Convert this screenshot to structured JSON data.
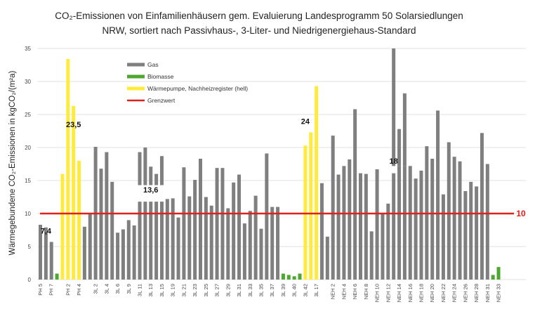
{
  "chart_data": {
    "type": "bar",
    "title_line1": "CO₂-Emissionen von Einfamilienhäusern gem. Evaluierung Landesprogramm 50 Solarsiedlungen",
    "title_line2": "NRW, sortiert nach Passivhaus-, 3-Liter- und Niedrigenergiehaus-Standard",
    "ylabel": "Wärmegebundene CO₂-Emissionen in kgCO₂/(m²a)",
    "ylim": [
      0,
      35
    ],
    "yticks": [
      "0",
      "5",
      "10",
      "15",
      "20",
      "25",
      "30",
      "35"
    ],
    "grid": true,
    "colors": {
      "gas": "#7f7f7f",
      "biomass": "#4ea72e",
      "heatpump": "#ffeb3b",
      "limit": "#e0201b"
    },
    "legend": [
      {
        "key": "gas",
        "label": "Gas"
      },
      {
        "key": "biomass",
        "label": "Biomasse"
      },
      {
        "key": "heatpump",
        "label": "Wärmepumpe, Nachheizregister (hell)"
      },
      {
        "key": "limit",
        "label": "Grenzwert"
      }
    ],
    "limit_value": 10,
    "limit_label": "10",
    "categories": [
      "PH 5",
      "PH 7",
      "PH 2",
      "PH 4",
      "3L 2",
      "3L 4",
      "3L 6",
      "3L 9",
      "3L 11",
      "3L 13",
      "3L 15",
      "3L 19",
      "3L 21",
      "3L 23",
      "3L 25",
      "3L 27",
      "3L 29",
      "3L 31",
      "3L 33",
      "3L 35",
      "3L 37",
      "3L 39",
      "3L 40",
      "3L 42",
      "3L 17",
      "NEH 2",
      "NEH 4",
      "NEH 6",
      "NEH 8",
      "NEH 10",
      "NEH 12",
      "NEH 14",
      "NEH 16",
      "NEH 18",
      "NEH 20",
      "NEH 22",
      "NEH 24",
      "NEH 26",
      "NEH 28",
      "NEH 31",
      "NEH 33"
    ],
    "bars": [
      [
        "gas",
        8.3
      ],
      [
        "gas",
        7.9
      ],
      [
        "gas",
        5.7
      ],
      [
        "biomass",
        0.9
      ],
      [
        "heatpump",
        16.0
      ],
      [
        "heatpump",
        33.4
      ],
      [
        "heatpump",
        26.3
      ],
      [
        "heatpump",
        18.0
      ],
      [
        "gas",
        8.0
      ],
      [
        "gas",
        10.0
      ],
      [
        "gas",
        20.1
      ],
      [
        "gas",
        16.8
      ],
      [
        "gas",
        19.3
      ],
      [
        "gas",
        14.8
      ],
      [
        "gas",
        7.1
      ],
      [
        "gas",
        7.6
      ],
      [
        "gas",
        9.0
      ],
      [
        "gas",
        8.2
      ],
      [
        "gas",
        11.8
      ],
      [
        "gas",
        11.8
      ],
      [
        "gas",
        11.8
      ],
      [
        "gas",
        11.8
      ],
      [
        "gas",
        11.8
      ],
      [
        "gas",
        12.2
      ],
      [
        "gas",
        12.3
      ],
      [
        "gas",
        9.4
      ],
      [
        "gas",
        17.0
      ],
      [
        "gas",
        12.6
      ],
      [
        "gas",
        15.1
      ],
      [
        "gas",
        18.3
      ],
      [
        "gas",
        12.5
      ],
      [
        "gas",
        11.2
      ],
      [
        "gas",
        16.9
      ],
      [
        "gas",
        16.9
      ],
      [
        "gas",
        10.8
      ],
      [
        "gas",
        14.7
      ],
      [
        "gas",
        15.9
      ],
      [
        "gas",
        8.5
      ],
      [
        "gas",
        10.4
      ],
      [
        "gas",
        12.7
      ],
      [
        "gas",
        7.7
      ],
      [
        "gas",
        19.1
      ],
      [
        "gas",
        11.0
      ],
      [
        "gas",
        11.0
      ],
      [
        "biomass",
        0.9
      ],
      [
        "biomass",
        0.7
      ],
      [
        "biomass",
        0.5
      ],
      [
        "biomass",
        0.9
      ],
      [
        "heatpump",
        20.3
      ],
      [
        "heatpump",
        22.3
      ],
      [
        "heatpump",
        29.3
      ],
      [
        "gas",
        14.6
      ],
      [
        "gas",
        6.5
      ],
      [
        "gas",
        21.8
      ],
      [
        "gas",
        15.9
      ],
      [
        "gas",
        17.2
      ],
      [
        "gas",
        18.2
      ],
      [
        "gas",
        25.8
      ],
      [
        "gas",
        16.1
      ],
      [
        "gas",
        16.0
      ],
      [
        "gas",
        7.3
      ],
      [
        "gas",
        16.7
      ],
      [
        "gas",
        10.1
      ],
      [
        "gas",
        11.5
      ],
      [
        "gas",
        16.1
      ],
      [
        "gas",
        17.2
      ],
      [
        "gas",
        17.2
      ],
      [
        "gas",
        17.2
      ],
      [
        "gas",
        15.3
      ],
      [
        "gas",
        16.5
      ],
      [
        "gas",
        20.2
      ],
      [
        "gas",
        18.3
      ],
      [
        "gas",
        25.6
      ],
      [
        "gas",
        12.9
      ],
      [
        "gas",
        20.8
      ],
      [
        "gas",
        18.6
      ],
      [
        "gas",
        17.9
      ],
      [
        "gas",
        13.4
      ],
      [
        "gas",
        14.8
      ],
      [
        "gas",
        14.1
      ],
      [
        "gas",
        22.2
      ],
      [
        "gas",
        17.5
      ],
      [
        "biomass",
        0.7
      ],
      [
        "biomass",
        1.9
      ]
    ],
    "overlay_bars": [
      {
        "bar": 18,
        "from": 14.3,
        "to": 19.3,
        "color": "gas"
      },
      {
        "bar": 19,
        "from": 14.3,
        "to": 20.0,
        "color": "gas"
      },
      {
        "bar": 20,
        "from": 14.3,
        "to": 17.1,
        "color": "gas"
      },
      {
        "bar": 21,
        "from": 14.3,
        "to": 16.0,
        "color": "gas"
      },
      {
        "bar": 22,
        "from": 14.3,
        "to": 18.7,
        "color": "gas"
      },
      {
        "bar": 64,
        "from": 17.2,
        "to": 35.0,
        "color": "gas"
      },
      {
        "bar": 65,
        "from": 17.2,
        "to": 22.8,
        "color": "gas"
      },
      {
        "bar": 66,
        "from": 17.2,
        "to": 28.2,
        "color": "gas"
      }
    ],
    "annotations": [
      {
        "text": "7,4",
        "bar": 1,
        "y": 7.4
      },
      {
        "text": "23,5",
        "bar": 6,
        "y": 23.5
      },
      {
        "text": "13,6",
        "bar": 20,
        "y": 13.6
      },
      {
        "text": "24",
        "bar": 48,
        "y": 24.0
      },
      {
        "text": "18",
        "bar": 64,
        "y": 18.0
      }
    ]
  }
}
